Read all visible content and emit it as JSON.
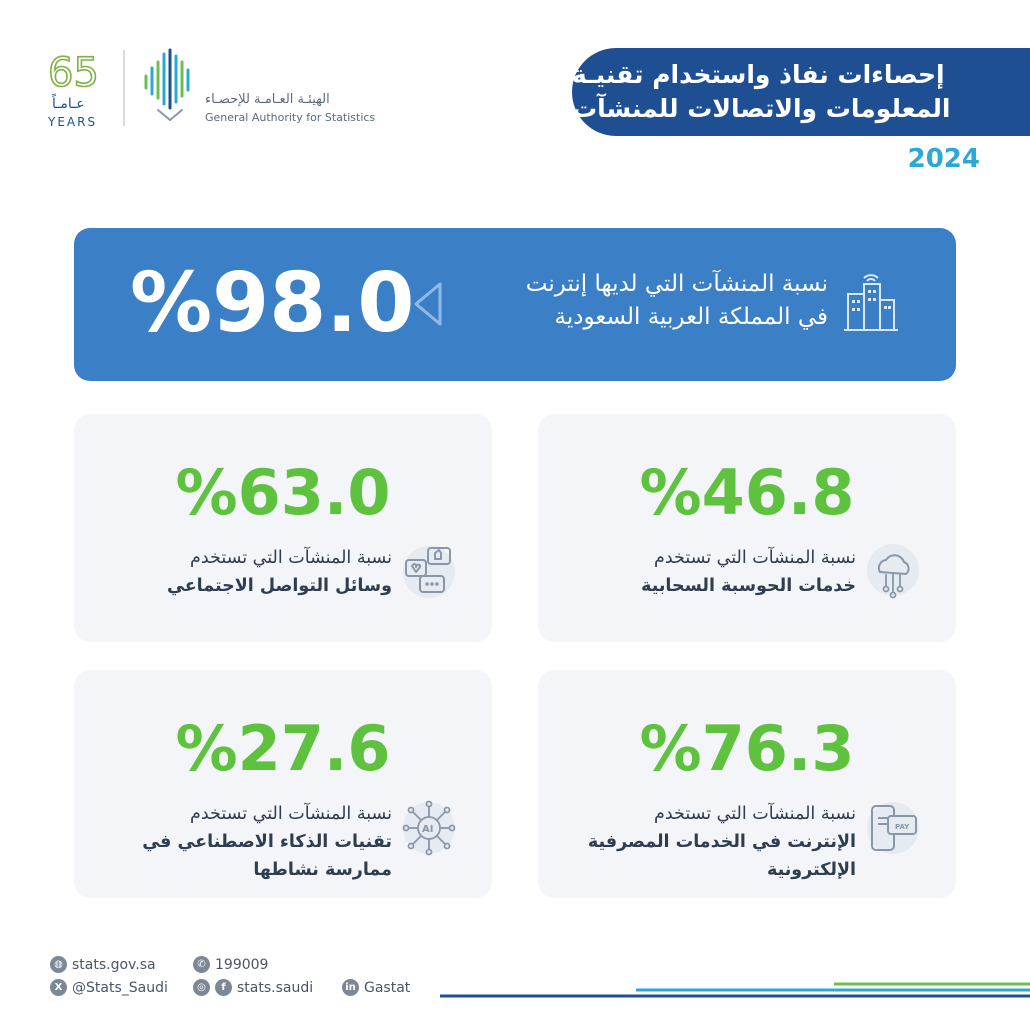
{
  "header": {
    "title_line1": "إحصاءات نفاذ واستخدام تقنيـة",
    "title_line2": "المعلومات والاتصالات للمنشآت",
    "year": "2024"
  },
  "logos": {
    "anniversary": {
      "number": "65",
      "arabic": "عـامـاً",
      "english": "YEARS"
    },
    "gastat": {
      "arabic": "الهيئـة العـامـة للإحصـاء",
      "english": "General Authority for Statistics"
    }
  },
  "hero": {
    "value": "%98.0",
    "label_line1": "نسبة المنشآت التي لديها إنترنت",
    "label_line2": "في المملكة العربية السعودية",
    "icon": "buildings-wifi-icon"
  },
  "cards": [
    {
      "value": "%46.8",
      "line1": "نسبة المنشآت التي تستخدم",
      "line2": "خدمات الحوسبة السحابية",
      "line3": "",
      "icon": "cloud-network-icon"
    },
    {
      "value": "%63.0",
      "line1": "نسبة المنشآت التي تستخدم",
      "line2": "وسائل التواصل الاجتماعي",
      "line3": "",
      "icon": "social-media-icon"
    },
    {
      "value": "%76.3",
      "line1": "نسبة المنشآت التي تستخدم",
      "line2": "الإنترنت في الخدمات المصرفية",
      "line3": "الإلكترونية",
      "icon": "mobile-pay-icon"
    },
    {
      "value": "%27.6",
      "line1": "نسبة المنشآت التي تستخدم",
      "line2": "تقنيات الذكاء الاصطناعي في",
      "line3": "ممارسة نشاطها",
      "icon": "ai-chip-icon"
    }
  ],
  "footer": {
    "website": "stats.gov.sa",
    "phone": "199009",
    "twitter": "@Stats_Saudi",
    "social": "stats.saudi",
    "linkedin": "Gastat"
  },
  "colors": {
    "navy": "#1e4f93",
    "hero_blue": "#3b7fc6",
    "accent_cyan": "#2aa8d8",
    "value_green": "#5ec23f",
    "card_bg": "#f3f5f8"
  }
}
